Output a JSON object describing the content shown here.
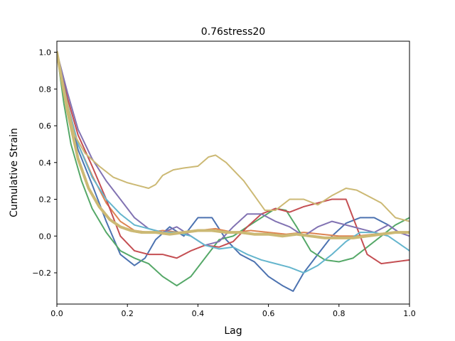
{
  "chart_data": {
    "type": "line",
    "title": "0.76stress20",
    "xlabel": "Lag",
    "ylabel": "Cumulative Strain",
    "xlim": [
      0,
      1
    ],
    "ylim": [
      -0.37,
      1.06
    ],
    "xticks": [
      0.0,
      0.2,
      0.4,
      0.6,
      0.8,
      1.0
    ],
    "xtick_labels": [
      "0.0",
      "0.2",
      "0.4",
      "0.6",
      "0.8",
      "1.0"
    ],
    "yticks": [
      -0.2,
      0.0,
      0.2,
      0.4,
      0.6,
      0.8,
      1.0
    ],
    "ytick_labels": [
      "−0.2",
      "0.0",
      "0.2",
      "0.4",
      "0.6",
      "0.8",
      "1.0"
    ],
    "grid": false,
    "series": [
      {
        "color": "#4c72b0",
        "x": [
          0,
          0.03,
          0.06,
          0.1,
          0.14,
          0.18,
          0.22,
          0.25,
          0.28,
          0.32,
          0.36,
          0.4,
          0.44,
          0.48,
          0.52,
          0.56,
          0.6,
          0.64,
          0.67,
          0.7,
          0.74,
          0.78,
          0.82,
          0.86,
          0.9,
          0.94,
          0.97,
          1.0
        ],
        "y": [
          1.0,
          0.7,
          0.47,
          0.28,
          0.08,
          -0.1,
          -0.16,
          -0.12,
          -0.02,
          0.05,
          0.0,
          0.1,
          0.1,
          -0.02,
          -0.1,
          -0.14,
          -0.22,
          -0.27,
          -0.3,
          -0.2,
          -0.1,
          0.0,
          0.07,
          0.1,
          0.1,
          0.06,
          0.02,
          0.02
        ]
      },
      {
        "color": "#dd8452",
        "x": [
          0,
          0.03,
          0.06,
          0.1,
          0.14,
          0.18,
          0.22,
          0.26,
          0.3,
          0.35,
          0.4,
          0.45,
          0.5,
          0.55,
          0.6,
          0.65,
          0.7,
          0.75,
          0.8,
          0.85,
          0.9,
          0.95,
          1.0
        ],
        "y": [
          1.0,
          0.72,
          0.5,
          0.33,
          0.18,
          0.08,
          0.03,
          0.02,
          0.03,
          0.02,
          0.03,
          0.04,
          0.02,
          0.03,
          0.02,
          0.01,
          0.02,
          0.01,
          0.0,
          0.0,
          0.01,
          0.02,
          0.02
        ]
      },
      {
        "color": "#55a868",
        "x": [
          0,
          0.02,
          0.04,
          0.07,
          0.1,
          0.14,
          0.18,
          0.22,
          0.26,
          0.3,
          0.34,
          0.38,
          0.42,
          0.46,
          0.5,
          0.54,
          0.58,
          0.62,
          0.65,
          0.68,
          0.72,
          0.76,
          0.8,
          0.84,
          0.88,
          0.92,
          0.96,
          1.0
        ],
        "y": [
          1.0,
          0.72,
          0.5,
          0.3,
          0.15,
          0.02,
          -0.08,
          -0.12,
          -0.15,
          -0.22,
          -0.27,
          -0.22,
          -0.12,
          -0.02,
          0.0,
          0.05,
          0.1,
          0.15,
          0.14,
          0.05,
          -0.08,
          -0.13,
          -0.14,
          -0.12,
          -0.06,
          0.0,
          0.06,
          0.1
        ]
      },
      {
        "color": "#c44e52",
        "x": [
          0,
          0.03,
          0.06,
          0.1,
          0.14,
          0.18,
          0.22,
          0.26,
          0.3,
          0.34,
          0.38,
          0.42,
          0.46,
          0.5,
          0.54,
          0.58,
          0.62,
          0.66,
          0.7,
          0.74,
          0.78,
          0.82,
          0.85,
          0.88,
          0.92,
          0.96,
          1.0
        ],
        "y": [
          1.0,
          0.75,
          0.55,
          0.38,
          0.2,
          0.0,
          -0.08,
          -0.1,
          -0.1,
          -0.12,
          -0.08,
          -0.05,
          -0.06,
          -0.03,
          0.05,
          0.12,
          0.15,
          0.13,
          0.16,
          0.18,
          0.2,
          0.2,
          0.05,
          -0.1,
          -0.15,
          -0.14,
          -0.13
        ]
      },
      {
        "color": "#8172b2",
        "x": [
          0,
          0.03,
          0.06,
          0.1,
          0.14,
          0.18,
          0.22,
          0.26,
          0.3,
          0.34,
          0.38,
          0.42,
          0.46,
          0.5,
          0.54,
          0.58,
          0.62,
          0.66,
          0.7,
          0.74,
          0.78,
          0.82,
          0.86,
          0.9,
          0.94,
          0.97,
          1.0
        ],
        "y": [
          1.0,
          0.78,
          0.58,
          0.42,
          0.3,
          0.2,
          0.1,
          0.04,
          0.02,
          0.05,
          0.0,
          -0.05,
          -0.03,
          0.05,
          0.12,
          0.12,
          0.08,
          0.05,
          0.0,
          0.05,
          0.08,
          0.06,
          0.04,
          0.02,
          0.06,
          0.02,
          0.0
        ]
      },
      {
        "color": "#64b5cd",
        "x": [
          0,
          0.03,
          0.06,
          0.1,
          0.14,
          0.18,
          0.22,
          0.26,
          0.3,
          0.34,
          0.38,
          0.42,
          0.46,
          0.5,
          0.54,
          0.58,
          0.62,
          0.66,
          0.7,
          0.74,
          0.78,
          0.82,
          0.86,
          0.9,
          0.94,
          0.97,
          1.0
        ],
        "y": [
          1.0,
          0.72,
          0.5,
          0.32,
          0.2,
          0.12,
          0.06,
          0.04,
          0.02,
          0.02,
          0.0,
          -0.05,
          -0.07,
          -0.06,
          -0.1,
          -0.13,
          -0.15,
          -0.17,
          -0.2,
          -0.16,
          -0.1,
          -0.03,
          0.02,
          0.02,
          0.0,
          -0.04,
          -0.08
        ]
      },
      {
        "color": "#ccb974",
        "x": [
          0,
          0.02,
          0.05,
          0.08,
          0.12,
          0.16,
          0.2,
          0.24,
          0.26,
          0.28,
          0.3,
          0.33,
          0.36,
          0.4,
          0.43,
          0.45,
          0.48,
          0.5,
          0.53,
          0.56,
          0.59,
          0.62,
          0.64,
          0.66,
          0.7,
          0.74,
          0.78,
          0.82,
          0.85,
          0.88,
          0.92,
          0.96,
          1.0
        ],
        "y": [
          1.0,
          0.8,
          0.55,
          0.45,
          0.38,
          0.32,
          0.29,
          0.27,
          0.26,
          0.28,
          0.33,
          0.36,
          0.37,
          0.38,
          0.43,
          0.44,
          0.4,
          0.36,
          0.3,
          0.22,
          0.14,
          0.14,
          0.17,
          0.2,
          0.2,
          0.17,
          0.22,
          0.26,
          0.25,
          0.22,
          0.18,
          0.1,
          0.08
        ]
      },
      {
        "color": "#ccb974",
        "thick": true,
        "x": [
          0,
          0.03,
          0.06,
          0.09,
          0.12,
          0.15,
          0.18,
          0.21,
          0.24,
          0.28,
          0.32,
          0.36,
          0.4,
          0.44,
          0.48,
          0.52,
          0.56,
          0.6,
          0.64,
          0.68,
          0.72,
          0.76,
          0.8,
          0.84,
          0.88,
          0.92,
          0.96,
          1.0
        ],
        "y": [
          1.0,
          0.68,
          0.42,
          0.26,
          0.16,
          0.09,
          0.05,
          0.03,
          0.02,
          0.02,
          0.01,
          0.02,
          0.03,
          0.03,
          0.02,
          0.02,
          0.01,
          0.01,
          0.0,
          0.01,
          0.0,
          -0.01,
          -0.01,
          -0.01,
          0.0,
          0.01,
          0.02,
          0.02
        ]
      }
    ]
  }
}
